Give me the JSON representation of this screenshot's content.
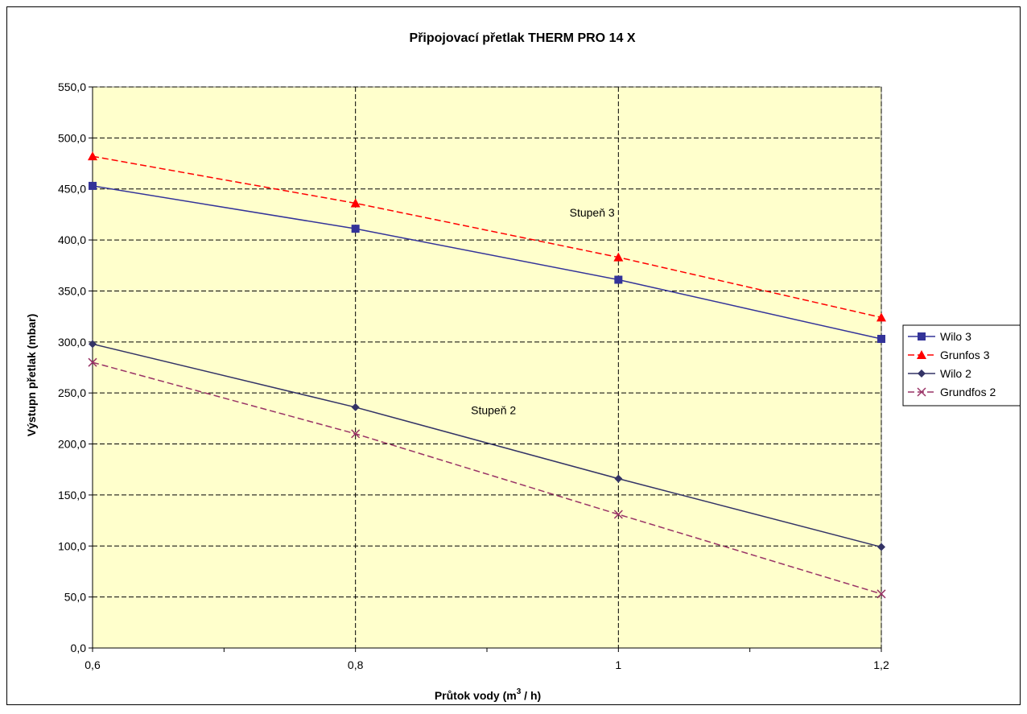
{
  "chart_data": {
    "type": "line",
    "title": "Připojovací přetlak THERM PRO 14 X",
    "xlabel_main": "Průtok vody (m",
    "xlabel_sup": "3",
    "xlabel_tail": " / h)",
    "ylabel": "Výstupn přetlak (mbar)",
    "x": [
      0.6,
      0.8,
      1.0,
      1.2
    ],
    "x_tick_labels": [
      "0,6",
      "0,8",
      "1",
      "1,2"
    ],
    "xlim": [
      0.6,
      1.2
    ],
    "ylim": [
      0,
      550
    ],
    "y_tick_labels": [
      "0,0",
      "50,0",
      "100,0",
      "150,0",
      "200,0",
      "250,0",
      "300,0",
      "350,0",
      "400,0",
      "450,0",
      "500,0",
      "550,0"
    ],
    "y_ticks": [
      0,
      50,
      100,
      150,
      200,
      250,
      300,
      350,
      400,
      450,
      500,
      550
    ],
    "grid": true,
    "plot_background": "#FFFFCC",
    "legend_position": "right",
    "series": [
      {
        "name": "Wilo 3",
        "values": [
          453,
          411,
          361,
          303
        ],
        "color": "#333399",
        "dash": false,
        "marker": "square"
      },
      {
        "name": "Grunfos 3",
        "values": [
          482,
          436,
          383,
          324
        ],
        "color": "#FF0000",
        "dash": true,
        "marker": "triangle"
      },
      {
        "name": "Wilo 2",
        "values": [
          298,
          236,
          166,
          99
        ],
        "color": "#333366",
        "dash": false,
        "marker": "diamond"
      },
      {
        "name": "Grundfos 2",
        "values": [
          280,
          210,
          131,
          53
        ],
        "color": "#993366",
        "dash": true,
        "marker": "x"
      }
    ],
    "annotations": [
      {
        "text": "Stupeň 3",
        "x": 0.98,
        "y": 427
      },
      {
        "text": "Stupeň 2",
        "x": 0.905,
        "y": 233
      }
    ]
  }
}
